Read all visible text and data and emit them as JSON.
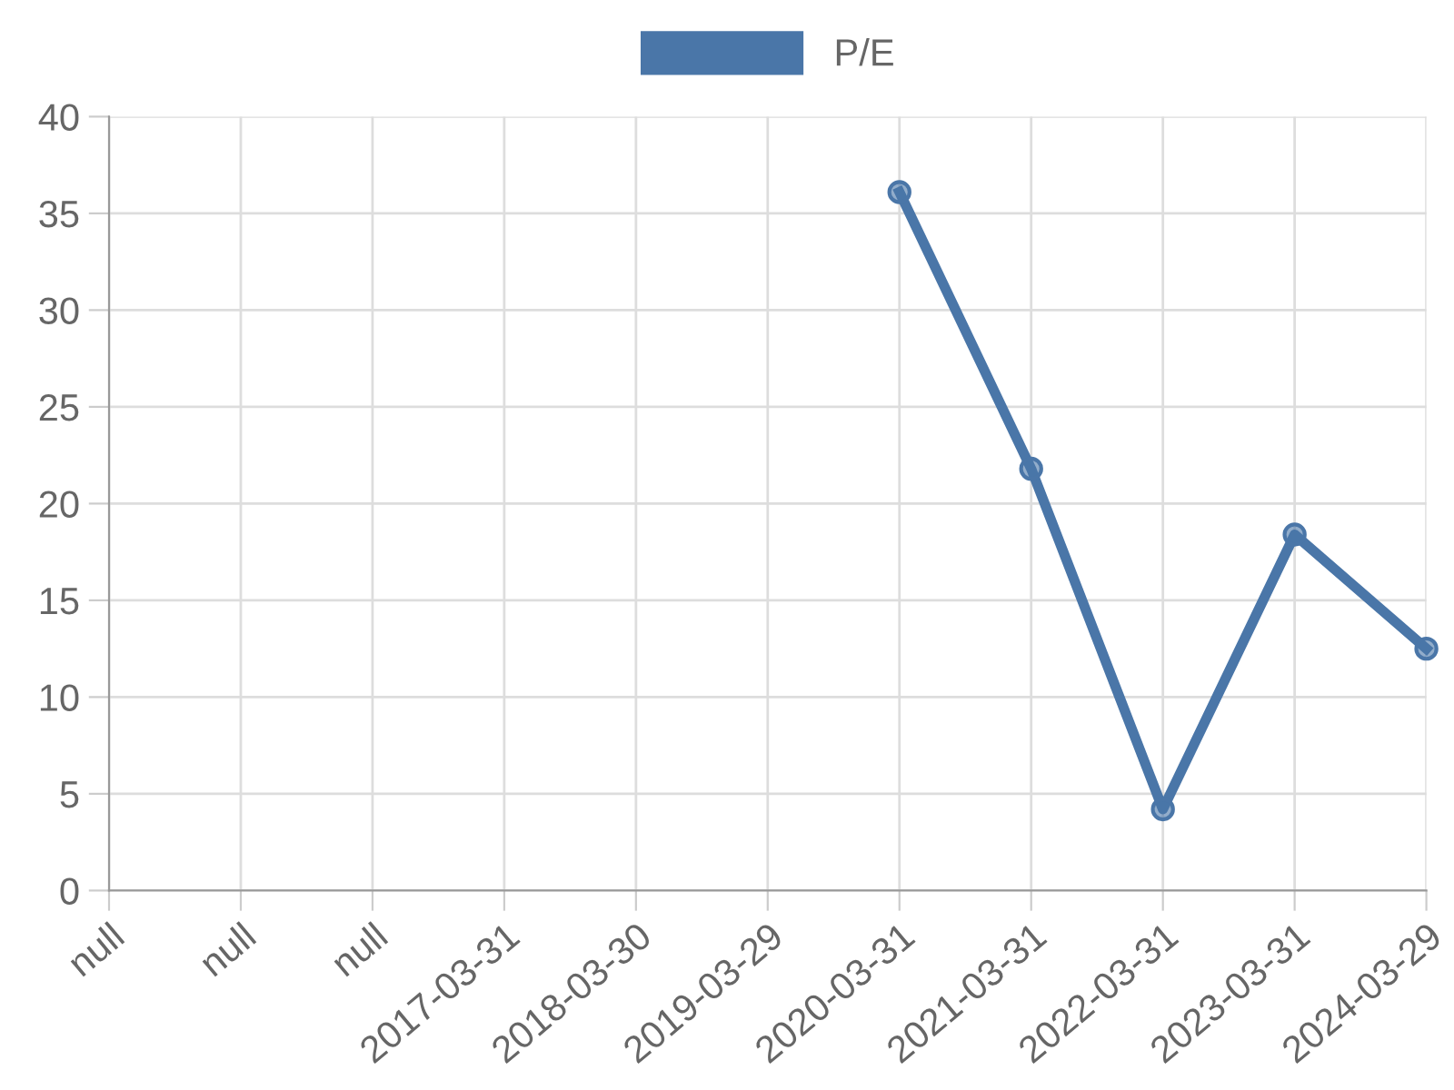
{
  "chart_data": {
    "type": "line",
    "categories": [
      "null",
      "null",
      "null",
      "2017-03-31",
      "2018-03-30",
      "2019-03-29",
      "2020-03-31",
      "2021-03-31",
      "2022-03-31",
      "2023-03-31",
      "2024-03-29"
    ],
    "series": [
      {
        "name": "P/E",
        "color": "#4a76a8",
        "values": [
          null,
          null,
          null,
          null,
          null,
          null,
          36.1,
          21.8,
          4.2,
          18.4,
          12.5
        ]
      }
    ],
    "ylim": [
      0,
      40
    ],
    "yticks": [
      0,
      5,
      10,
      15,
      20,
      25,
      30,
      35,
      40
    ],
    "grid": true,
    "legend": "top",
    "marker": "circle",
    "line_style": "solid"
  }
}
